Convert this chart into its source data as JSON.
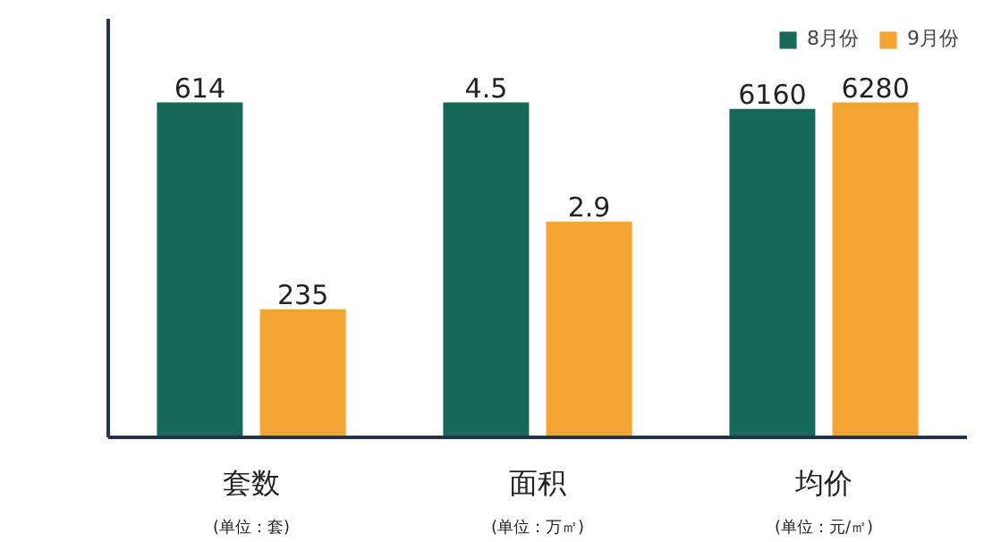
{
  "chart_data": [
    {
      "type": "bar",
      "categories": [
        "套数"
      ],
      "series": [
        {
          "color": "#17695a",
          "values": [
            614
          ]
        },
        {
          "color": "#f2a531",
          "values": [
            235
          ]
        }
      ],
      "tick_labels": "x",
      "data_labels": true,
      "annotations": [
        "(单位：套)"
      ]
    },
    {
      "type": "bar",
      "categories": [
        "面积"
      ],
      "series": [
        {
          "color": "#17695a",
          "values": [
            4.5
          ]
        },
        {
          "color": "#f2a531",
          "values": [
            2.9
          ]
        }
      ],
      "tick_labels": "x",
      "data_labels": true,
      "annotations": [
        "(单位：万㎡)"
      ]
    },
    {
      "type": "bar",
      "categories": [
        "均价"
      ],
      "series": [
        {
          "name": "8月份",
          "color": "#17695a",
          "values": [
            6160
          ]
        },
        {
          "name": "9月份",
          "color": "#f2a531",
          "values": [
            6280
          ]
        }
      ],
      "tick_labels": "x",
      "data_labels": true,
      "legend": "top right",
      "annotations": [
        "(单位：元/㎡)"
      ]
    }
  ]
}
